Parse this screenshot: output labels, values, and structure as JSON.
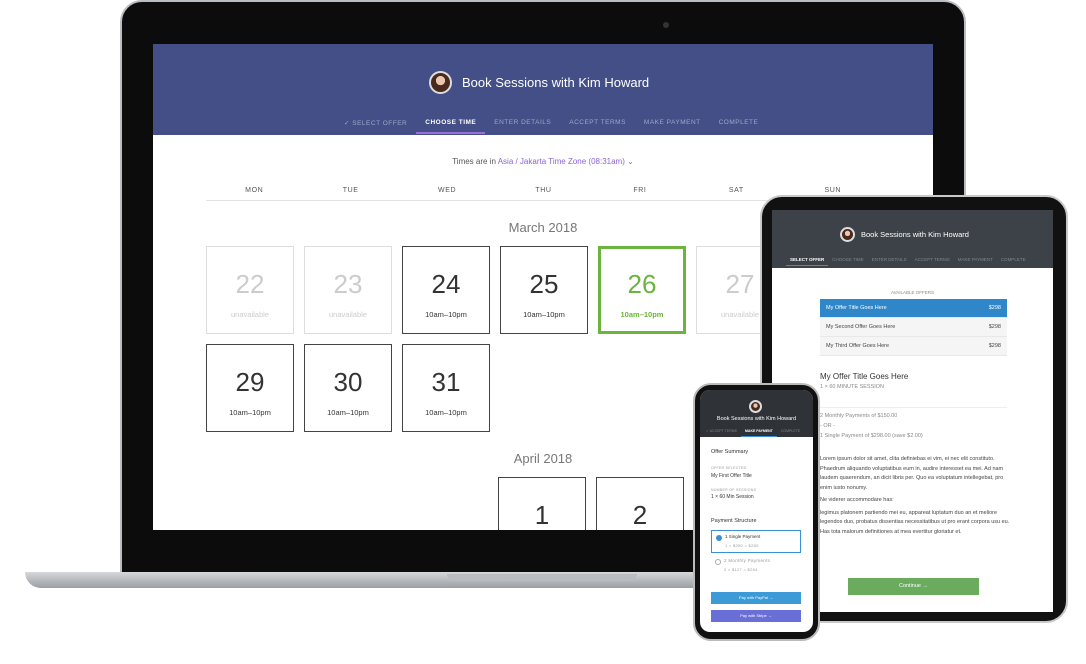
{
  "laptop": {
    "title": "Book Sessions with Kim Howard",
    "steps": [
      "✓ SELECT OFFER",
      "CHOOSE TIME",
      "ENTER DETAILS",
      "ACCEPT TERMS",
      "MAKE PAYMENT",
      "COMPLETE"
    ],
    "active_step": 1,
    "tz_prefix": "Times are in ",
    "tz_link": "Asia / Jakarta Time Zone (08:31am) ⌄",
    "days": [
      "MON",
      "TUE",
      "WED",
      "THU",
      "FRI",
      "SAT",
      "SUN"
    ],
    "month1": "March 2018",
    "cells": [
      {
        "n": "22",
        "t": "unavailable",
        "state": "unavailable"
      },
      {
        "n": "23",
        "t": "unavailable",
        "state": "unavailable"
      },
      {
        "n": "24",
        "t": "10am–10pm",
        "state": "available"
      },
      {
        "n": "25",
        "t": "10am–10pm",
        "state": "available"
      },
      {
        "n": "26",
        "t": "10am–10pm",
        "state": "selected"
      },
      {
        "n": "27",
        "t": "unavailable",
        "state": "unavailable"
      },
      {
        "n": "29",
        "t": "10am–10pm",
        "state": "available"
      },
      {
        "n": "30",
        "t": "10am–10pm",
        "state": "available"
      },
      {
        "n": "31",
        "t": "10am–10pm",
        "state": "available"
      }
    ],
    "month2": "April 2018",
    "april": [
      "1",
      "2"
    ],
    "colors": {
      "header": "#434f86",
      "accent": "#8a63d2",
      "selected": "#6cb33f"
    }
  },
  "tablet": {
    "title": "Book Sessions with Kim Howard",
    "steps": [
      "SELECT OFFER",
      "CHOOSE TIME",
      "ENTER DETAILS",
      "ACCEPT TERMS",
      "MAKE PAYMENT",
      "COMPLETE"
    ],
    "offers_label": "AVAILABLE OFFERS",
    "offers": [
      {
        "name": "My Offer Title Goes Here",
        "price": "$298"
      },
      {
        "name": "My Second Offer Goes Here",
        "price": "$298"
      },
      {
        "name": "My Third Offer Goes Here",
        "price": "$298"
      }
    ],
    "offer_title": "My Offer Title Goes Here",
    "offer_sub": "1 × 60 MINUTE SESSION",
    "pay1": "2 Monthly Payments of $150.00",
    "or": "- OR -",
    "pay2": "1 Single Payment of $298.00 (save $2.00)",
    "p1": "Lorem ipsum dolor sit amet, clita definiebas ei vim, ei nec elit constituto. Phaedrum aliquando voluptatibus eum in, audire interesset ea mei. Ad nam laudem quaerendum, an dicit libris per. Quo ea voluptatum intellegebat, pro enim iusto nonumy.",
    "p2": "Ne viderer accommodare has:",
    "p3": "legimus platonem partiendo mei eu, appareat luptatum duo an et meliore legendos duo, probatus dissentias necessitatibus ut pro erant corpora usu eu. Has tota malorum definitiones at mea evertitur gloriatur et.",
    "continue": "Continue →"
  },
  "phone": {
    "title": "Book Sessions with Kim Howard",
    "steps": [
      "✓ ACCEPT TERMS",
      "MAKE PAYMENT",
      "COMPLETE"
    ],
    "summary": "Offer Summary",
    "l1": "OFFER SELECTED",
    "v1": "My First Offer Title",
    "l2": "NUMBER OF SESSIONS",
    "v2": "1 × 60 Min Session",
    "structure": "Payment Structure",
    "o1": "1 Single Payment",
    "o1s": "1 × $250 = $250",
    "o2": "2 Monthly Payments",
    "o2s": "2 × $127 = $254",
    "paypal": "Pay with PayPal →",
    "stripe": "Pay with Stripe →"
  }
}
